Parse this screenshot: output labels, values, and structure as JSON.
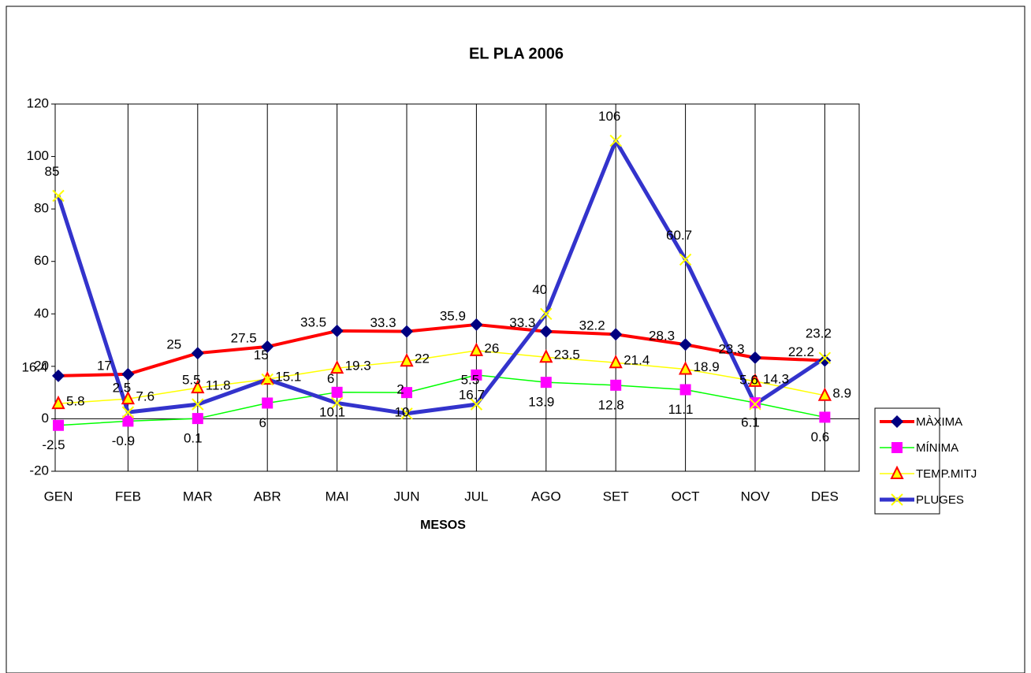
{
  "chart_data": {
    "type": "line",
    "title": "EL PLA  2006",
    "x_label": "MESOS",
    "categories": [
      "GEN",
      "FEB",
      "MAR",
      "ABR",
      "MAI",
      "JUN",
      "JUL",
      "AGO",
      "SET",
      "OCT",
      "NOV",
      "DES"
    ],
    "ylim": [
      -20,
      120
    ],
    "yticks": [
      -20,
      0,
      20,
      40,
      60,
      80,
      100,
      120
    ],
    "grid": "x",
    "legend": "right",
    "series": [
      {
        "name": "MÀXIMA",
        "color": "#ff0000",
        "marker": "diamond",
        "marker_color": "#000080",
        "line_width": 4,
        "values": [
          16.4,
          17,
          25,
          27.5,
          33.5,
          33.3,
          35.9,
          33.3,
          32.2,
          28.3,
          23.3,
          22.2
        ]
      },
      {
        "name": "MÍNIMA",
        "color": "#00ff00",
        "marker": "square",
        "marker_color": "#ff00ff",
        "line_width": 1.5,
        "values": [
          -2.5,
          -0.9,
          0.1,
          6,
          10.1,
          10,
          16.7,
          13.9,
          12.8,
          11.1,
          6.1,
          0.6
        ]
      },
      {
        "name": "TEMP.MITJ",
        "color": "#ffff00",
        "marker": "triangle",
        "marker_color": "#ff0000",
        "line_width": 1.5,
        "values": [
          5.8,
          7.6,
          11.8,
          15.1,
          19.3,
          22,
          26,
          23.5,
          21.4,
          18.9,
          14.3,
          8.9
        ]
      },
      {
        "name": "PLUGES",
        "color": "#3333cc",
        "marker": "x",
        "marker_color": "#ffff00",
        "line_width": 5,
        "values": [
          85,
          2.5,
          5.5,
          15,
          6,
          2,
          5.5,
          40,
          106,
          60.7,
          5.6,
          23.2
        ]
      }
    ]
  }
}
